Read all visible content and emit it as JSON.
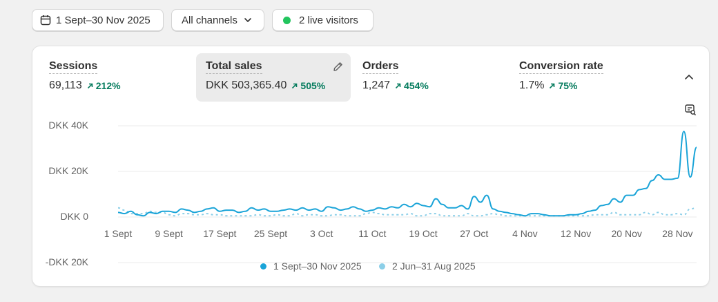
{
  "toolbar": {
    "date_range": "1 Sept–30 Nov 2025",
    "channels": "All channels",
    "live_visitors": "2 live visitors"
  },
  "metrics": [
    {
      "label": "Sessions",
      "value": "69,113",
      "change": "212%"
    },
    {
      "label": "Total sales",
      "value": "DKK 503,365.40",
      "change": "505%"
    },
    {
      "label": "Orders",
      "value": "1,247",
      "change": "454%"
    },
    {
      "label": "Conversion rate",
      "value": "1.7%",
      "change": "75%"
    }
  ],
  "colors": {
    "current": "#1aa4d8",
    "previous": "#8ccfe8",
    "positive": "#047b5d",
    "live": "#22c55e"
  },
  "chart_data": {
    "type": "line",
    "title": "",
    "xlabel": "",
    "ylabel": "",
    "y_tick_labels": [
      "DKK 40K",
      "DKK 20K",
      "DKK 0",
      "-DKK 20K"
    ],
    "y_ticks": [
      40000,
      20000,
      0,
      -20000
    ],
    "ylim": [
      -20000,
      40000
    ],
    "x_tick_labels": [
      "1 Sept",
      "9 Sept",
      "17 Sept",
      "25 Sept",
      "3 Oct",
      "11 Oct",
      "19 Oct",
      "27 Oct",
      "4 Nov",
      "12 Nov",
      "20 Nov",
      "28 Nov"
    ],
    "x_tick_days": [
      0,
      8,
      16,
      24,
      32,
      40,
      48,
      56,
      64,
      72,
      80,
      88
    ],
    "grid": true,
    "legend_position": "bottom",
    "series": [
      {
        "name": "1 Sept–30 Nov 2025",
        "style": "solid",
        "values": [
          2000,
          1500,
          2500,
          1000,
          500,
          2000,
          1500,
          2500,
          2500,
          2000,
          3500,
          3000,
          2000,
          2500,
          3500,
          4000,
          2500,
          3000,
          3000,
          2000,
          2500,
          4000,
          3000,
          3500,
          2500,
          2500,
          3000,
          3500,
          3000,
          4000,
          3000,
          3500,
          2500,
          4500,
          4000,
          3000,
          3500,
          4500,
          3500,
          2500,
          3000,
          4000,
          3500,
          4500,
          4000,
          5500,
          4500,
          6000,
          5000,
          4500,
          8000,
          5500,
          4000,
          4000,
          5000,
          3500,
          9000,
          6500,
          9500,
          3500,
          2500,
          2000,
          1500,
          1000,
          500,
          1500,
          1500,
          1000,
          500,
          500,
          500,
          1000,
          1000,
          1500,
          2500,
          3000,
          5000,
          5500,
          8000,
          6500,
          9500,
          9500,
          12000,
          12500,
          16000,
          18500,
          16500,
          16500,
          17000,
          37500,
          17500,
          30500
        ]
      },
      {
        "name": "2 Jun–31 Aug 2025",
        "style": "dashed",
        "values": [
          4000,
          3000,
          1500,
          1500,
          1500,
          2500,
          2000,
          2000,
          1000,
          500,
          1500,
          1500,
          1000,
          1000,
          1500,
          1000,
          1000,
          500,
          500,
          500,
          500,
          500,
          1000,
          500,
          500,
          1000,
          500,
          500,
          1500,
          500,
          1000,
          1000,
          500,
          500,
          1000,
          1000,
          500,
          500,
          500,
          1500,
          2000,
          1500,
          1000,
          1000,
          1000,
          1000,
          1500,
          500,
          500,
          1500,
          1500,
          500,
          500,
          500,
          500,
          1500,
          500,
          500,
          1000,
          1500,
          1000,
          500,
          500,
          500,
          500,
          500,
          500,
          500,
          500,
          500,
          500,
          500,
          500,
          500,
          500,
          1000,
          1000,
          1000,
          2000,
          1000,
          1000,
          1000,
          1000,
          2000,
          1000,
          2000,
          1000,
          1000,
          1500,
          1000,
          3500,
          4000
        ]
      }
    ]
  }
}
